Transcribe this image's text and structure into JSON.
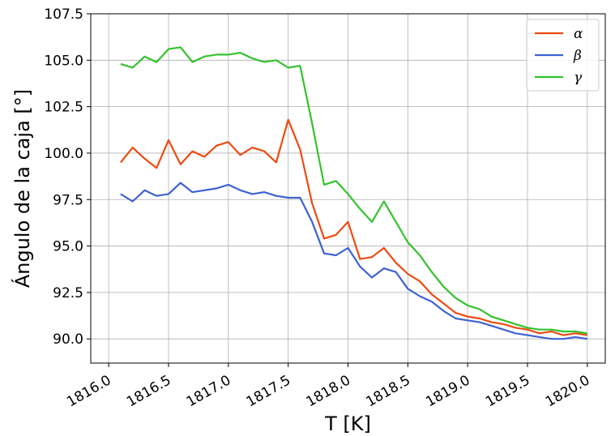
{
  "chart_data": {
    "type": "line",
    "xlabel": "T [K]",
    "ylabel": "Ángulo de la caja [°]",
    "xlim": [
      1815.85,
      1820.15
    ],
    "ylim": [
      88.7,
      107.5
    ],
    "x_ticks": [
      1816.0,
      1816.5,
      1817.0,
      1817.5,
      1818.0,
      1818.5,
      1819.0,
      1819.5,
      1820.0
    ],
    "x_tick_labels": [
      "1816.0",
      "1816.5",
      "1817.0",
      "1817.5",
      "1818.0",
      "1818.5",
      "1819.0",
      "1819.5",
      "1820.0"
    ],
    "y_ticks": [
      90.0,
      92.5,
      95.0,
      97.5,
      100.0,
      102.5,
      105.0,
      107.5
    ],
    "y_tick_labels": [
      "90.0",
      "92.5",
      "95.0",
      "97.5",
      "100.0",
      "102.5",
      "105.0",
      "107.5"
    ],
    "grid": true,
    "legend_position": "top-right",
    "x": [
      1816.1,
      1816.2,
      1816.3,
      1816.4,
      1816.5,
      1816.6,
      1816.7,
      1816.8,
      1816.9,
      1817.0,
      1817.1,
      1817.2,
      1817.3,
      1817.4,
      1817.5,
      1817.6,
      1817.7,
      1817.8,
      1817.9,
      1818.0,
      1818.1,
      1818.2,
      1818.3,
      1818.4,
      1818.5,
      1818.6,
      1818.7,
      1818.8,
      1818.9,
      1819.0,
      1819.1,
      1819.2,
      1819.3,
      1819.4,
      1819.5,
      1819.6,
      1819.7,
      1819.8,
      1819.9,
      1820.0
    ],
    "series": [
      {
        "name": "α",
        "color": "#ee4a12",
        "values": [
          99.5,
          100.3,
          99.7,
          99.2,
          100.7,
          99.4,
          100.1,
          99.8,
          100.4,
          100.6,
          99.9,
          100.3,
          100.1,
          99.5,
          101.8,
          100.2,
          97.3,
          95.4,
          95.6,
          96.3,
          94.3,
          94.4,
          94.9,
          94.1,
          93.5,
          93.1,
          92.4,
          91.9,
          91.4,
          91.2,
          91.1,
          90.9,
          90.8,
          90.6,
          90.5,
          90.3,
          90.4,
          90.2,
          90.3,
          90.2
        ]
      },
      {
        "name": "β",
        "color": "#3d62d2",
        "values": [
          97.8,
          97.4,
          98.0,
          97.7,
          97.8,
          98.4,
          97.9,
          98.0,
          98.1,
          98.3,
          98.0,
          97.8,
          97.9,
          97.7,
          97.6,
          97.6,
          96.3,
          94.6,
          94.5,
          94.9,
          93.9,
          93.3,
          93.8,
          93.6,
          92.7,
          92.3,
          92.0,
          91.5,
          91.1,
          91.0,
          90.9,
          90.7,
          90.5,
          90.3,
          90.2,
          90.1,
          90.0,
          90.0,
          90.1,
          90.0
        ]
      },
      {
        "name": "γ",
        "color": "#33c22e",
        "values": [
          104.8,
          104.6,
          105.2,
          104.9,
          105.6,
          105.7,
          104.9,
          105.2,
          105.3,
          105.3,
          105.4,
          105.1,
          104.9,
          105.0,
          104.6,
          104.7,
          101.6,
          98.3,
          98.5,
          97.8,
          97.0,
          96.3,
          97.4,
          96.3,
          95.2,
          94.5,
          93.6,
          92.8,
          92.2,
          91.8,
          91.6,
          91.2,
          91.0,
          90.8,
          90.6,
          90.5,
          90.5,
          90.4,
          90.4,
          90.3
        ]
      }
    ]
  }
}
